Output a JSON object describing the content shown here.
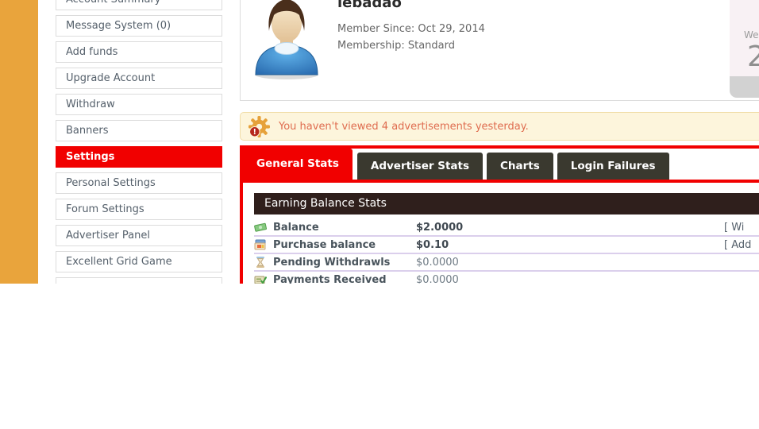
{
  "sidebar": {
    "items": [
      {
        "label": "Account Summary",
        "active": false
      },
      {
        "label": "Message System (0)",
        "active": false
      },
      {
        "label": "Add funds",
        "active": false
      },
      {
        "label": "Upgrade Account",
        "active": false
      },
      {
        "label": "Withdraw",
        "active": false
      },
      {
        "label": "Banners",
        "active": false
      },
      {
        "label": "Settings",
        "active": true
      },
      {
        "label": "Personal Settings",
        "active": false
      },
      {
        "label": "Forum Settings",
        "active": false
      },
      {
        "label": "Advertiser Panel",
        "active": false
      },
      {
        "label": "Excellent Grid Game",
        "active": false
      },
      {
        "label": "",
        "active": false
      }
    ]
  },
  "profile": {
    "username": "lebadao",
    "member_since": "Member Since: Oct 29, 2014",
    "membership": "Membership: Standard"
  },
  "calendar": {
    "weekday_partial": "We",
    "day_partial": "2"
  },
  "notification": {
    "message": "You haven't viewed 4 advertisements yesterday."
  },
  "tabs": [
    {
      "label": "General Stats",
      "active": true
    },
    {
      "label": "Advertiser Stats",
      "active": false
    },
    {
      "label": "Charts",
      "active": false
    },
    {
      "label": "Login Failures",
      "active": false
    }
  ],
  "stats": {
    "section_title": "Earning Balance Stats",
    "rows": [
      {
        "icon": "banknote-icon",
        "label": "Balance",
        "value": "$2.0000",
        "bold": true,
        "link": "[ Wi"
      },
      {
        "icon": "purchase-card-icon",
        "label": "Purchase balance",
        "value": "$0.10",
        "bold": true,
        "link": "[ Add"
      },
      {
        "icon": "hourglass-icon",
        "label": "Pending Withdrawls",
        "value": "$0.0000",
        "bold": false,
        "link": ""
      },
      {
        "icon": "cheque-icon",
        "label": "Payments Received",
        "value": "$0.0000",
        "bold": false,
        "link": ""
      }
    ]
  },
  "colors": {
    "accent_red": "#f10000",
    "sidebar_accent_orange": "#e9a43c",
    "tab_inactive": "#3a392f",
    "stats_header_bg": "#2f1f1c",
    "notification_bg": "#fdf5dc",
    "notification_text": "#df6c4f",
    "row_divider": "#dbcfec"
  }
}
